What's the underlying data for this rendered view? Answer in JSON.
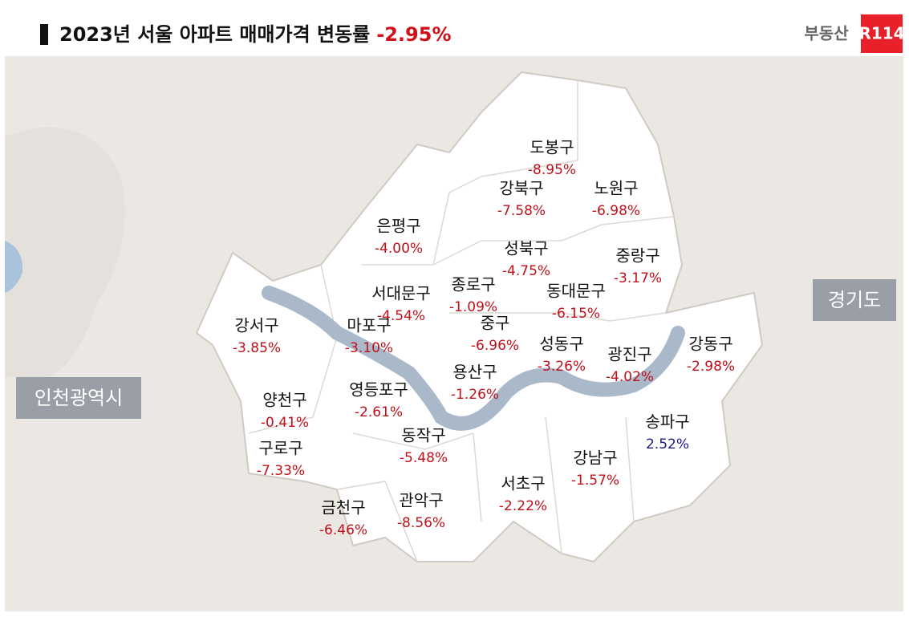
{
  "header": {
    "title": "2023년 서울 아파트 매매가격 변동률",
    "title_value": "-2.95%",
    "logo_text": "부동산",
    "logo_badge": "R114"
  },
  "regions": [
    "경기도",
    "인천광역시"
  ],
  "districts": [
    {
      "name": "도봉구",
      "change": "-8.95%",
      "color": "#c0101a"
    },
    {
      "name": "강북구",
      "change": "-7.58%",
      "color": "#c0101a"
    },
    {
      "name": "노원구",
      "change": "-6.98%",
      "color": "#c0101a"
    },
    {
      "name": "은평구",
      "change": "-4.00%",
      "color": "#c0101a"
    },
    {
      "name": "성북구",
      "change": "-4.75%",
      "color": "#c0101a"
    },
    {
      "name": "중랑구",
      "change": "-3.17%",
      "color": "#c0101a"
    },
    {
      "name": "서대문구",
      "change": "-4.54%",
      "color": "#c0101a"
    },
    {
      "name": "종로구",
      "change": "-1.09%",
      "color": "#c0101a"
    },
    {
      "name": "동대문구",
      "change": "-6.15%",
      "color": "#c0101a"
    },
    {
      "name": "강서구",
      "change": "-3.85%",
      "color": "#c0101a"
    },
    {
      "name": "마포구",
      "change": "-3.10%",
      "color": "#c0101a"
    },
    {
      "name": "중구",
      "change": "-6.96%",
      "color": "#c0101a"
    },
    {
      "name": "성동구",
      "change": "-3.26%",
      "color": "#c0101a"
    },
    {
      "name": "광진구",
      "change": "-4.02%",
      "color": "#c0101a"
    },
    {
      "name": "강동구",
      "change": "-2.98%",
      "color": "#c0101a"
    },
    {
      "name": "용산구",
      "change": "-1.26%",
      "color": "#c0101a"
    },
    {
      "name": "영등포구",
      "change": "-2.61%",
      "color": "#c0101a"
    },
    {
      "name": "양천구",
      "change": "-0.41%",
      "color": "#c0101a"
    },
    {
      "name": "송파구",
      "change": "2.52%",
      "color": "#1a1a8c"
    },
    {
      "name": "동작구",
      "change": "-5.48%",
      "color": "#c0101a"
    },
    {
      "name": "구로구",
      "change": "-7.33%",
      "color": "#c0101a"
    },
    {
      "name": "강남구",
      "change": "-1.57%",
      "color": "#c0101a"
    },
    {
      "name": "서초구",
      "change": "-2.22%",
      "color": "#c0101a"
    },
    {
      "name": "관악구",
      "change": "-8.56%",
      "color": "#c0101a"
    },
    {
      "name": "금천구",
      "change": "-6.46%",
      "color": "#c0101a"
    }
  ]
}
